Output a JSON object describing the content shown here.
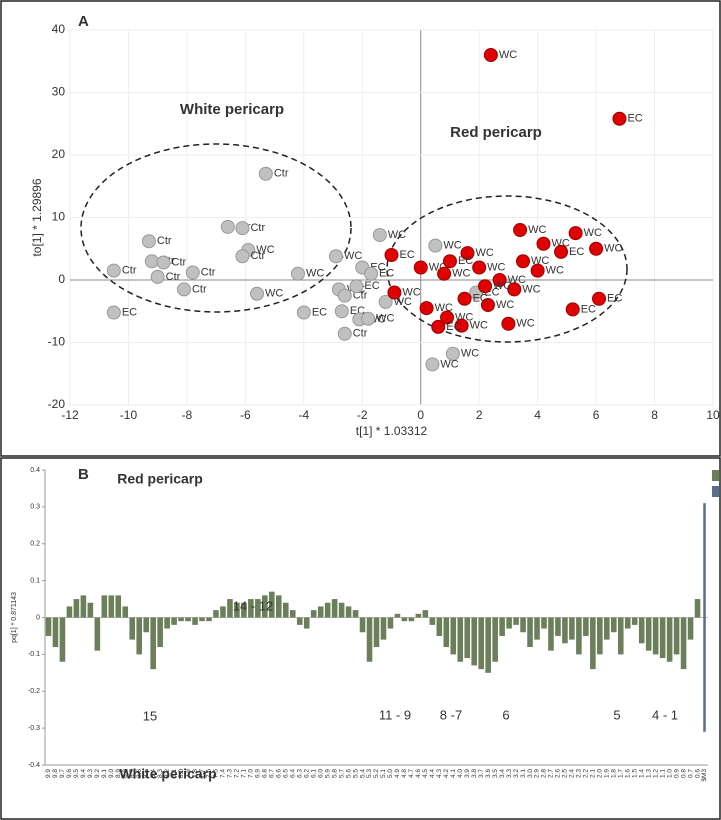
{
  "chart_data": [
    {
      "type": "scatter",
      "panel_label": "A",
      "xlabel": "t[1] * 1.03312",
      "ylabel": "to[1] * 1.29896",
      "xlim": [
        -12,
        10
      ],
      "ylim": [
        -20,
        40
      ],
      "xticks": [
        -12,
        -10,
        -8,
        -6,
        -4,
        -2,
        0,
        2,
        4,
        6,
        8,
        10
      ],
      "yticks": [
        -20,
        -10,
        0,
        10,
        20,
        30,
        40
      ],
      "annotations": [
        "White pericarp",
        "Red pericarp"
      ],
      "series": [
        {
          "color": "#c0c0c0",
          "x": [
            -10.5,
            -9.3,
            -9.2,
            -8.8,
            -9,
            -7.8,
            -8.1,
            -10.5,
            -6.6,
            -6.1,
            -5.9,
            -6.1,
            -5.3,
            -5.6,
            -4.2,
            -4,
            -2.9,
            -2.8,
            -2.6,
            -2.2,
            -2,
            -1.7,
            -1.4,
            -1.2,
            -2.7,
            -2.6,
            -2.1,
            -1.8,
            0.5,
            1.1,
            0.4,
            1.9
          ],
          "y": [
            1.5,
            6.2,
            3,
            2.8,
            0.5,
            1.2,
            -1.5,
            -5.2,
            8.5,
            8.3,
            4.8,
            3.8,
            17,
            -2.2,
            1,
            -5.2,
            3.8,
            -1.5,
            -2.5,
            -1,
            2,
            1,
            7.2,
            -3.5,
            -5,
            -8.6,
            -6.3,
            -6.2,
            5.5,
            -11.8,
            -13.5,
            -2
          ],
          "labels": [
            "Ctr",
            "Ctr",
            "Ctr",
            "Ctr",
            "Ctr",
            "Ctr",
            "Ctr",
            "EC",
            "Ctr",
            "Ctr",
            "WC",
            "Ctr",
            "Ctr",
            "WC",
            "WC",
            "EC",
            "WC",
            "WC",
            "Ctr",
            "EC",
            "EC",
            "EC",
            "WC",
            "WC",
            "EC",
            "Ctr",
            "WC",
            "WC",
            "WC",
            "WC",
            "WC",
            "EC"
          ]
        },
        {
          "color": "#e00000",
          "x": [
            2.4,
            6.8,
            -1,
            3.4,
            4.2,
            5.3,
            6,
            6.1,
            5.2,
            3,
            1.6,
            0,
            0.8,
            1,
            2,
            2.7,
            3.5,
            -0.9,
            0.2,
            0.9,
            1.4,
            0.6,
            2.3,
            3.2,
            4,
            4.8,
            1.5,
            2.2
          ],
          "y": [
            36,
            25.8,
            4,
            8,
            5.8,
            7.5,
            5,
            -3,
            -4.7,
            -7,
            4.3,
            2,
            1,
            3,
            2,
            0,
            3,
            -2,
            -4.5,
            -6,
            -7.3,
            -7.5,
            -4,
            -1.5,
            1.5,
            4.5,
            -3,
            -1
          ],
          "labels": [
            "WC",
            "EC",
            "EC",
            "WC",
            "WC",
            "WC",
            "WC",
            "EC",
            "EC",
            "WC",
            "WC",
            "WC",
            "WC",
            "EC",
            "WC",
            "WC",
            "WC",
            "WC",
            "WC",
            "WC",
            "WC",
            "EC",
            "WC",
            "WC",
            "WC",
            "EC",
            "EC",
            "WC"
          ]
        }
      ]
    },
    {
      "type": "bar",
      "panel_label": "B",
      "ylabel": "pq[1] * 0.871143",
      "ylim": [
        -0.4,
        0.4
      ],
      "yticks": [
        -0.4,
        -0.3,
        -0.2,
        -0.1,
        0,
        0.1,
        0.2,
        0.3,
        0.4
      ],
      "annotations": [
        "Red pericarp",
        "White pericarp",
        "14 - 12",
        "15",
        "11 - 9",
        "8 -7",
        "6",
        "5",
        "4 - 1"
      ],
      "categories": [
        "9.9",
        "9.8",
        "9.7",
        "9.6",
        "9.5",
        "9.4",
        "9.3",
        "9.2",
        "9.1",
        "9.0",
        "8.9",
        "8.8",
        "8.7",
        "8.6",
        "8.5",
        "8.4",
        "8.3",
        "8.2",
        "8.1",
        "8.0",
        "7.9",
        "7.8",
        "7.7",
        "7.6",
        "7.5",
        "7.4",
        "7.3",
        "7.2",
        "7.1",
        "7.0",
        "6.9",
        "6.8",
        "6.7",
        "6.6",
        "6.5",
        "6.4",
        "6.3",
        "6.2",
        "6.1",
        "6.0",
        "5.9",
        "5.8",
        "5.7",
        "5.6",
        "5.5",
        "5.4",
        "5.3",
        "5.2",
        "5.1",
        "5.0",
        "4.9",
        "4.8",
        "4.7",
        "4.6",
        "4.5",
        "4.4",
        "4.3",
        "4.2",
        "4.1",
        "4.0",
        "3.9",
        "3.8",
        "3.7",
        "3.6",
        "3.5",
        "3.4",
        "3.3",
        "3.2",
        "3.1",
        "3.0",
        "2.9",
        "2.8",
        "2.7",
        "2.6",
        "2.5",
        "2.4",
        "2.3",
        "2.2",
        "2.1",
        "2.0",
        "1.9",
        "1.8",
        "1.7",
        "1.6",
        "1.5",
        "1.4",
        "1.3",
        "1.2",
        "1.1",
        "1.0",
        "0.9",
        "0.8",
        "0.7",
        "0.6",
        "$M3"
      ],
      "series": [
        {
          "color": "#6b7f5a",
          "values": [
            -0.05,
            -0.08,
            -0.12,
            0.03,
            0.05,
            0.06,
            0.04,
            -0.09,
            0.06,
            0.06,
            0.06,
            0.03,
            -0.06,
            -0.1,
            -0.04,
            -0.14,
            -0.08,
            -0.03,
            -0.02,
            -0.01,
            -0.01,
            -0.02,
            -0.01,
            -0.01,
            0.02,
            0.03,
            0.05,
            0.04,
            0.04,
            0.05,
            0.05,
            0.06,
            0.07,
            0.06,
            0.04,
            0.02,
            -0.02,
            -0.03,
            0.02,
            0.03,
            0.04,
            0.05,
            0.04,
            0.03,
            0.02,
            -0.04,
            -0.12,
            -0.08,
            -0.06,
            -0.03,
            0.01,
            -0.01,
            -0.01,
            0.01,
            0.02,
            -0.02,
            -0.05,
            -0.08,
            -0.1,
            -0.12,
            -0.11,
            -0.13,
            -0.14,
            -0.15,
            -0.12,
            -0.05,
            -0.03,
            -0.02,
            -0.04,
            -0.08,
            -0.06,
            -0.03,
            -0.09,
            -0.05,
            -0.07,
            -0.06,
            -0.1,
            -0.05,
            -0.14,
            -0.1,
            -0.06,
            -0.04,
            -0.1,
            -0.03,
            -0.02,
            -0.07,
            -0.09,
            -0.1,
            -0.11,
            -0.12,
            -0.1,
            -0.14,
            -0.06,
            0.05,
            null
          ]
        },
        {
          "color": "#5a6e8c",
          "values": [
            null,
            null,
            null,
            null,
            null,
            null,
            null,
            null,
            null,
            null,
            null,
            null,
            null,
            null,
            null,
            null,
            null,
            null,
            null,
            null,
            null,
            null,
            null,
            null,
            null,
            null,
            null,
            null,
            null,
            null,
            null,
            null,
            null,
            null,
            null,
            null,
            null,
            null,
            null,
            null,
            null,
            null,
            null,
            null,
            null,
            null,
            null,
            null,
            null,
            null,
            null,
            null,
            null,
            null,
            null,
            null,
            null,
            null,
            null,
            null,
            null,
            null,
            null,
            null,
            null,
            null,
            null,
            null,
            null,
            null,
            null,
            null,
            null,
            null,
            null,
            null,
            null,
            null,
            null,
            null,
            null,
            null,
            null,
            null,
            null,
            null,
            null,
            null,
            null,
            null,
            null,
            null,
            null,
            null,
            0.31
          ]
        },
        {
          "color": "#5a6e8c",
          "values": [
            null,
            null,
            null,
            null,
            null,
            null,
            null,
            null,
            null,
            null,
            null,
            null,
            null,
            null,
            null,
            null,
            null,
            null,
            null,
            null,
            null,
            null,
            null,
            null,
            null,
            null,
            null,
            null,
            null,
            null,
            null,
            null,
            null,
            null,
            null,
            null,
            null,
            null,
            null,
            null,
            null,
            null,
            null,
            null,
            null,
            null,
            null,
            null,
            null,
            null,
            null,
            null,
            null,
            null,
            null,
            null,
            null,
            null,
            null,
            null,
            null,
            null,
            null,
            null,
            null,
            null,
            null,
            null,
            null,
            null,
            null,
            null,
            null,
            null,
            null,
            null,
            null,
            null,
            null,
            null,
            null,
            null,
            null,
            null,
            null,
            null,
            null,
            null,
            null,
            null,
            null,
            null,
            null,
            null,
            -0.31
          ]
        }
      ]
    }
  ]
}
